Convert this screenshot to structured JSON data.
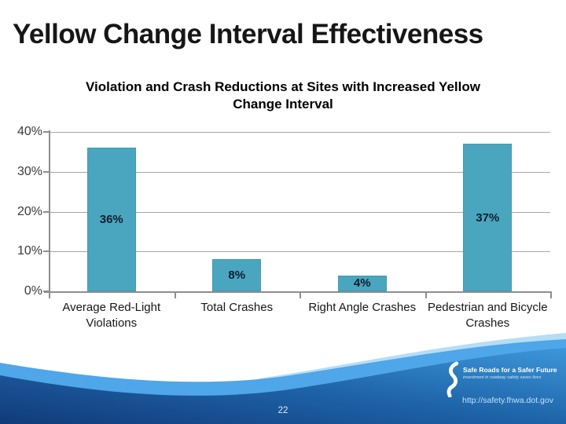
{
  "slide": {
    "title": "Yellow Change Interval Effectiveness",
    "page_number": "22"
  },
  "chart_data": {
    "type": "bar",
    "title": "Violation and Crash Reductions at Sites with Increased Yellow Change Interval",
    "categories": [
      "Average Red-Light Violations",
      "Total Crashes",
      "Right Angle Crashes",
      "Pedestrian and Bicycle Crashes"
    ],
    "values": [
      36,
      8,
      4,
      37
    ],
    "data_labels": [
      "36%",
      "8%",
      "4%",
      "37%"
    ],
    "ylim": [
      0,
      40
    ],
    "ytick_labels": [
      "40%",
      "30%",
      "20%",
      "10%",
      "0%"
    ],
    "grid": true,
    "legend": "none",
    "bar_color": "#4AA6BE",
    "bar_border_color": "#429BB2",
    "value_label_color": "#0F1D31",
    "gridline_color": "#A6A6A6",
    "axis_color": "#8E8E8E"
  },
  "footer": {
    "logo_title": "Safe Roads for a Safer Future",
    "logo_tagline": "investment in roadway safety saves lives",
    "url": "http://safety.fhwa.dot.gov",
    "wave_colors": {
      "sliver": "#B7DDF5",
      "band": "#4FA6E8",
      "body_dark": "#113A7A",
      "body_mid": "#1E63A8",
      "body_light": "#3D97DA"
    }
  }
}
